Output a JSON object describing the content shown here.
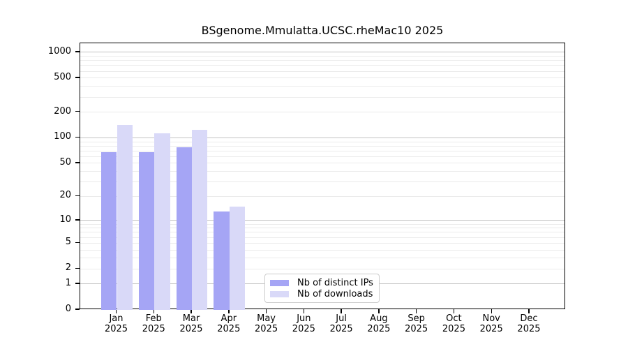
{
  "chart_data": {
    "type": "bar",
    "title": "BSgenome.Mmulatta.UCSC.rheMac10 2025",
    "xlabel": "",
    "ylabel": "",
    "yscale": "log1p",
    "ylim": [
      0,
      1275
    ],
    "yticks": [
      0,
      1,
      2,
      5,
      10,
      20,
      50,
      100,
      200,
      500,
      1000
    ],
    "grid": "horizontal log gridlines, minor and major",
    "legend_position": "inside plot, lower center-left",
    "categories": [
      "Jan 2025",
      "Feb 2025",
      "Mar 2025",
      "Apr 2025",
      "May 2025",
      "Jun 2025",
      "Jul 2025",
      "Aug 2025",
      "Sep 2025",
      "Oct 2025",
      "Nov 2025",
      "Dec 2025"
    ],
    "series": [
      {
        "name": "Nb of distinct IPs",
        "color": "#a5a5f5",
        "values": [
          68,
          68,
          77,
          13,
          0,
          0,
          0,
          0,
          0,
          0,
          0,
          0
        ]
      },
      {
        "name": "Nb of downloads",
        "color": "#d9d9f8",
        "values": [
          141,
          112,
          124,
          15,
          0,
          0,
          0,
          0,
          0,
          0,
          0,
          0
        ]
      }
    ]
  }
}
